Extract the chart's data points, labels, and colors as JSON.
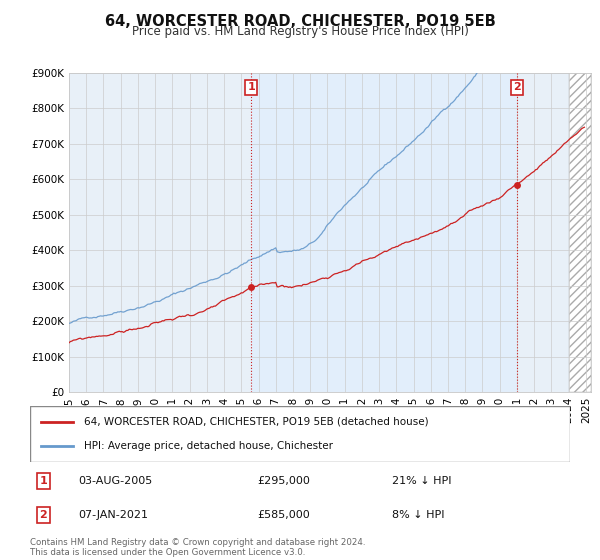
{
  "title": "64, WORCESTER ROAD, CHICHESTER, PO19 5EB",
  "subtitle": "Price paid vs. HM Land Registry's House Price Index (HPI)",
  "ylim": [
    0,
    900000
  ],
  "xlim_start": 1995.0,
  "xlim_end": 2025.3,
  "legend_line1": "64, WORCESTER ROAD, CHICHESTER, PO19 5EB (detached house)",
  "legend_line2": "HPI: Average price, detached house, Chichester",
  "marker1_date": "03-AUG-2005",
  "marker1_price": "£295,000",
  "marker1_hpi": "21% ↓ HPI",
  "marker1_x": 2005.58,
  "marker1_y": 295000,
  "marker2_date": "07-JAN-2021",
  "marker2_price": "£585,000",
  "marker2_hpi": "8% ↓ HPI",
  "marker2_x": 2021.02,
  "marker2_y": 585000,
  "vline1_x": 2005.58,
  "vline2_x": 2021.02,
  "footnote": "Contains HM Land Registry data © Crown copyright and database right 2024.\nThis data is licensed under the Open Government Licence v3.0.",
  "hpi_color": "#6699cc",
  "price_color": "#cc2222",
  "marker_box_color": "#cc2222",
  "background_color": "#ffffff",
  "grid_color": "#cccccc",
  "chart_bg": "#ddeeff",
  "shade_color": "#ddeeff"
}
